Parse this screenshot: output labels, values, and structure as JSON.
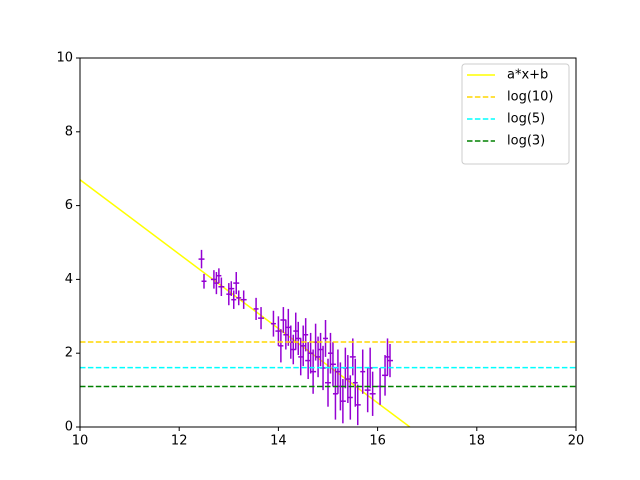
{
  "chart_data": {
    "type": "errorbar",
    "xlim": [
      10,
      20
    ],
    "xticks": [
      10,
      12,
      14,
      16,
      18,
      20
    ],
    "ylim": [
      0,
      10
    ],
    "yticks": [
      0,
      2,
      4,
      6,
      8,
      10
    ],
    "legend": "upper right",
    "series": [
      {
        "name": "a*x+b",
        "color": "#ffff00",
        "style": "solid",
        "x": [
          10,
          16.65
        ],
        "values": [
          6.7,
          0
        ]
      },
      {
        "name": "log(10)",
        "color": "#ffd700",
        "style": "dashed",
        "value": 2.303
      },
      {
        "name": "log(5)",
        "color": "#00ffff",
        "style": "dashed",
        "value": 1.609
      },
      {
        "name": "log(3)",
        "color": "#008000",
        "style": "dashed",
        "value": 1.099
      }
    ],
    "points": {
      "color": "#9400d3",
      "x": [
        12.45,
        12.5,
        12.7,
        12.75,
        12.8,
        12.85,
        13.0,
        13.05,
        13.1,
        13.15,
        13.2,
        13.3,
        13.55,
        13.65,
        13.9,
        14.0,
        14.05,
        14.1,
        14.15,
        14.2,
        14.25,
        14.3,
        14.35,
        14.4,
        14.45,
        14.5,
        14.55,
        14.6,
        14.65,
        14.7,
        14.75,
        14.8,
        14.85,
        14.9,
        14.95,
        15.0,
        15.05,
        15.1,
        15.15,
        15.2,
        15.25,
        15.3,
        15.35,
        15.4,
        15.45,
        15.5,
        15.55,
        15.6,
        15.7,
        15.8,
        15.85,
        15.9,
        16.05,
        16.15,
        16.2,
        16.25
      ],
      "y": [
        4.55,
        3.95,
        4.0,
        3.9,
        4.1,
        3.8,
        3.6,
        3.75,
        3.45,
        3.9,
        3.5,
        3.45,
        3.2,
        2.95,
        2.8,
        2.6,
        2.2,
        2.9,
        2.5,
        2.7,
        2.3,
        2.1,
        2.6,
        2.4,
        1.9,
        2.2,
        2.5,
        1.8,
        2.0,
        1.5,
        2.3,
        1.9,
        2.1,
        1.6,
        2.4,
        1.2,
        2.0,
        1.7,
        0.9,
        1.5,
        1.1,
        0.7,
        1.6,
        1.3,
        0.8,
        1.9,
        1.2,
        0.6,
        1.5,
        1.0,
        1.6,
        0.9,
        1.1,
        1.4,
        1.9,
        1.8
      ],
      "xerr": [
        0.06,
        0.05,
        0.06,
        0.05,
        0.05,
        0.06,
        0.05,
        0.06,
        0.05,
        0.06,
        0.05,
        0.06,
        0.05,
        0.06,
        0.05,
        0.06,
        0.05,
        0.06,
        0.05,
        0.06,
        0.05,
        0.06,
        0.05,
        0.06,
        0.05,
        0.06,
        0.05,
        0.06,
        0.05,
        0.06,
        0.05,
        0.06,
        0.05,
        0.06,
        0.05,
        0.06,
        0.05,
        0.06,
        0.05,
        0.06,
        0.05,
        0.06,
        0.05,
        0.06,
        0.05,
        0.06,
        0.05,
        0.06,
        0.05,
        0.06,
        0.05,
        0.06,
        0.05,
        0.06,
        0.05,
        0.06
      ],
      "yerr": [
        0.25,
        0.2,
        0.25,
        0.3,
        0.2,
        0.25,
        0.3,
        0.2,
        0.25,
        0.3,
        0.2,
        0.25,
        0.3,
        0.3,
        0.35,
        0.4,
        0.45,
        0.35,
        0.4,
        0.5,
        0.45,
        0.4,
        0.5,
        0.45,
        0.5,
        0.55,
        0.45,
        0.5,
        0.55,
        0.6,
        0.5,
        0.55,
        0.45,
        0.6,
        0.5,
        0.65,
        0.55,
        0.6,
        0.7,
        0.6,
        0.65,
        0.6,
        0.55,
        0.65,
        0.6,
        0.5,
        0.65,
        0.55,
        0.6,
        0.6,
        0.55,
        0.6,
        0.5,
        0.55,
        0.5,
        0.45
      ]
    }
  }
}
